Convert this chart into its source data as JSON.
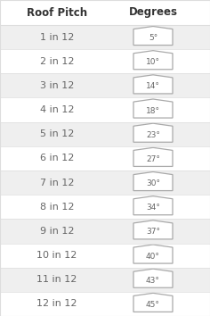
{
  "title_left": "Roof Pitch",
  "title_right": "Degrees",
  "rows": [
    {
      "pitch": "1 in 12",
      "degrees": "5°",
      "rise": 1
    },
    {
      "pitch": "2 in 12",
      "degrees": "10°",
      "rise": 2
    },
    {
      "pitch": "3 in 12",
      "degrees": "14°",
      "rise": 3
    },
    {
      "pitch": "4 in 12",
      "degrees": "18°",
      "rise": 4
    },
    {
      "pitch": "5 in 12",
      "degrees": "23°",
      "rise": 5
    },
    {
      "pitch": "6 in 12",
      "degrees": "27°",
      "rise": 6
    },
    {
      "pitch": "7 in 12",
      "degrees": "30°",
      "rise": 7
    },
    {
      "pitch": "8 in 12",
      "degrees": "34°",
      "rise": 8
    },
    {
      "pitch": "9 in 12",
      "degrees": "37°",
      "rise": 9
    },
    {
      "pitch": "10 in 12",
      "degrees": "40°",
      "rise": 10
    },
    {
      "pitch": "11 in 12",
      "degrees": "43°",
      "rise": 11
    },
    {
      "pitch": "12 in 12",
      "degrees": "45°",
      "rise": 12
    }
  ],
  "bg_color": "#ffffff",
  "stripe_color": "#efefef",
  "header_color": "#ffffff",
  "text_color": "#666666",
  "header_text_color": "#333333",
  "house_edge_color": "#aaaaaa",
  "divider_color": "#dddddd",
  "title_fontsize": 8.5,
  "row_fontsize": 8.0,
  "degree_fontsize": 6.5,
  "fig_width": 2.36,
  "fig_height": 3.54,
  "dpi": 100
}
